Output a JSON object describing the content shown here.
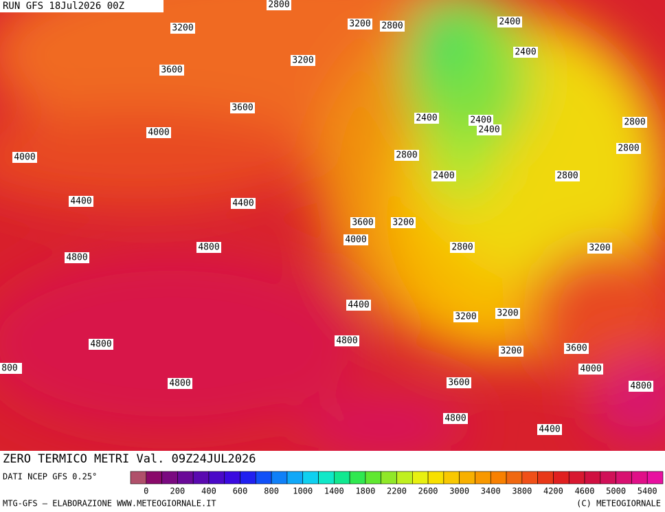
{
  "header": {
    "run": "RUN GFS 18Jul2026 00Z"
  },
  "contour_labels": [
    "2800",
    "3200",
    "3200",
    "2800",
    "2400",
    "2400",
    "3600",
    "3200",
    "3600",
    "2400",
    "2400",
    "2400",
    "2800",
    "4000",
    "2800",
    "4000",
    "2800",
    "2400",
    "2800",
    "4400",
    "4400",
    "3600",
    "3200",
    "4000",
    "4800",
    "2800",
    "3200",
    "4800",
    "4400",
    "3200",
    "3200",
    "4800",
    "4800",
    "3200",
    "3600",
    "800",
    "4000",
    "4800",
    "3600",
    "4800",
    "4800",
    "4400"
  ],
  "footer": {
    "title": "ZERO TERMICO METRI Val. 09Z24JUL2026",
    "source": "DATI NCEP GFS 0.25°",
    "credit_left": "MTG-GFS — ELABORAZIONE WWW.METEOGIORNALE.IT",
    "credit_right": "(C) METEOGIORNALE"
  },
  "colorbar": {
    "colors": [
      "#b0506a",
      "#8a0a6a",
      "#7a0a80",
      "#6a0a98",
      "#5a0ab0",
      "#4a0ac8",
      "#3a0ae0",
      "#2020f0",
      "#1050f8",
      "#1080f8",
      "#10a8f8",
      "#10d0f0",
      "#10e8c8",
      "#10e890",
      "#30e850",
      "#60e830",
      "#90e828",
      "#c0f020",
      "#e8f010",
      "#f8e000",
      "#f8c800",
      "#f8b000",
      "#f89800",
      "#f88000",
      "#f06810",
      "#f05018",
      "#e83818",
      "#e02020",
      "#d81830",
      "#d01040",
      "#d01058",
      "#d81070",
      "#e01088",
      "#e810a0"
    ],
    "labels": [
      "0",
      "200",
      "400",
      "600",
      "800",
      "1000",
      "1400",
      "1800",
      "2200",
      "2600",
      "3000",
      "3400",
      "3800",
      "4200",
      "4600",
      "5000",
      "5400"
    ]
  }
}
